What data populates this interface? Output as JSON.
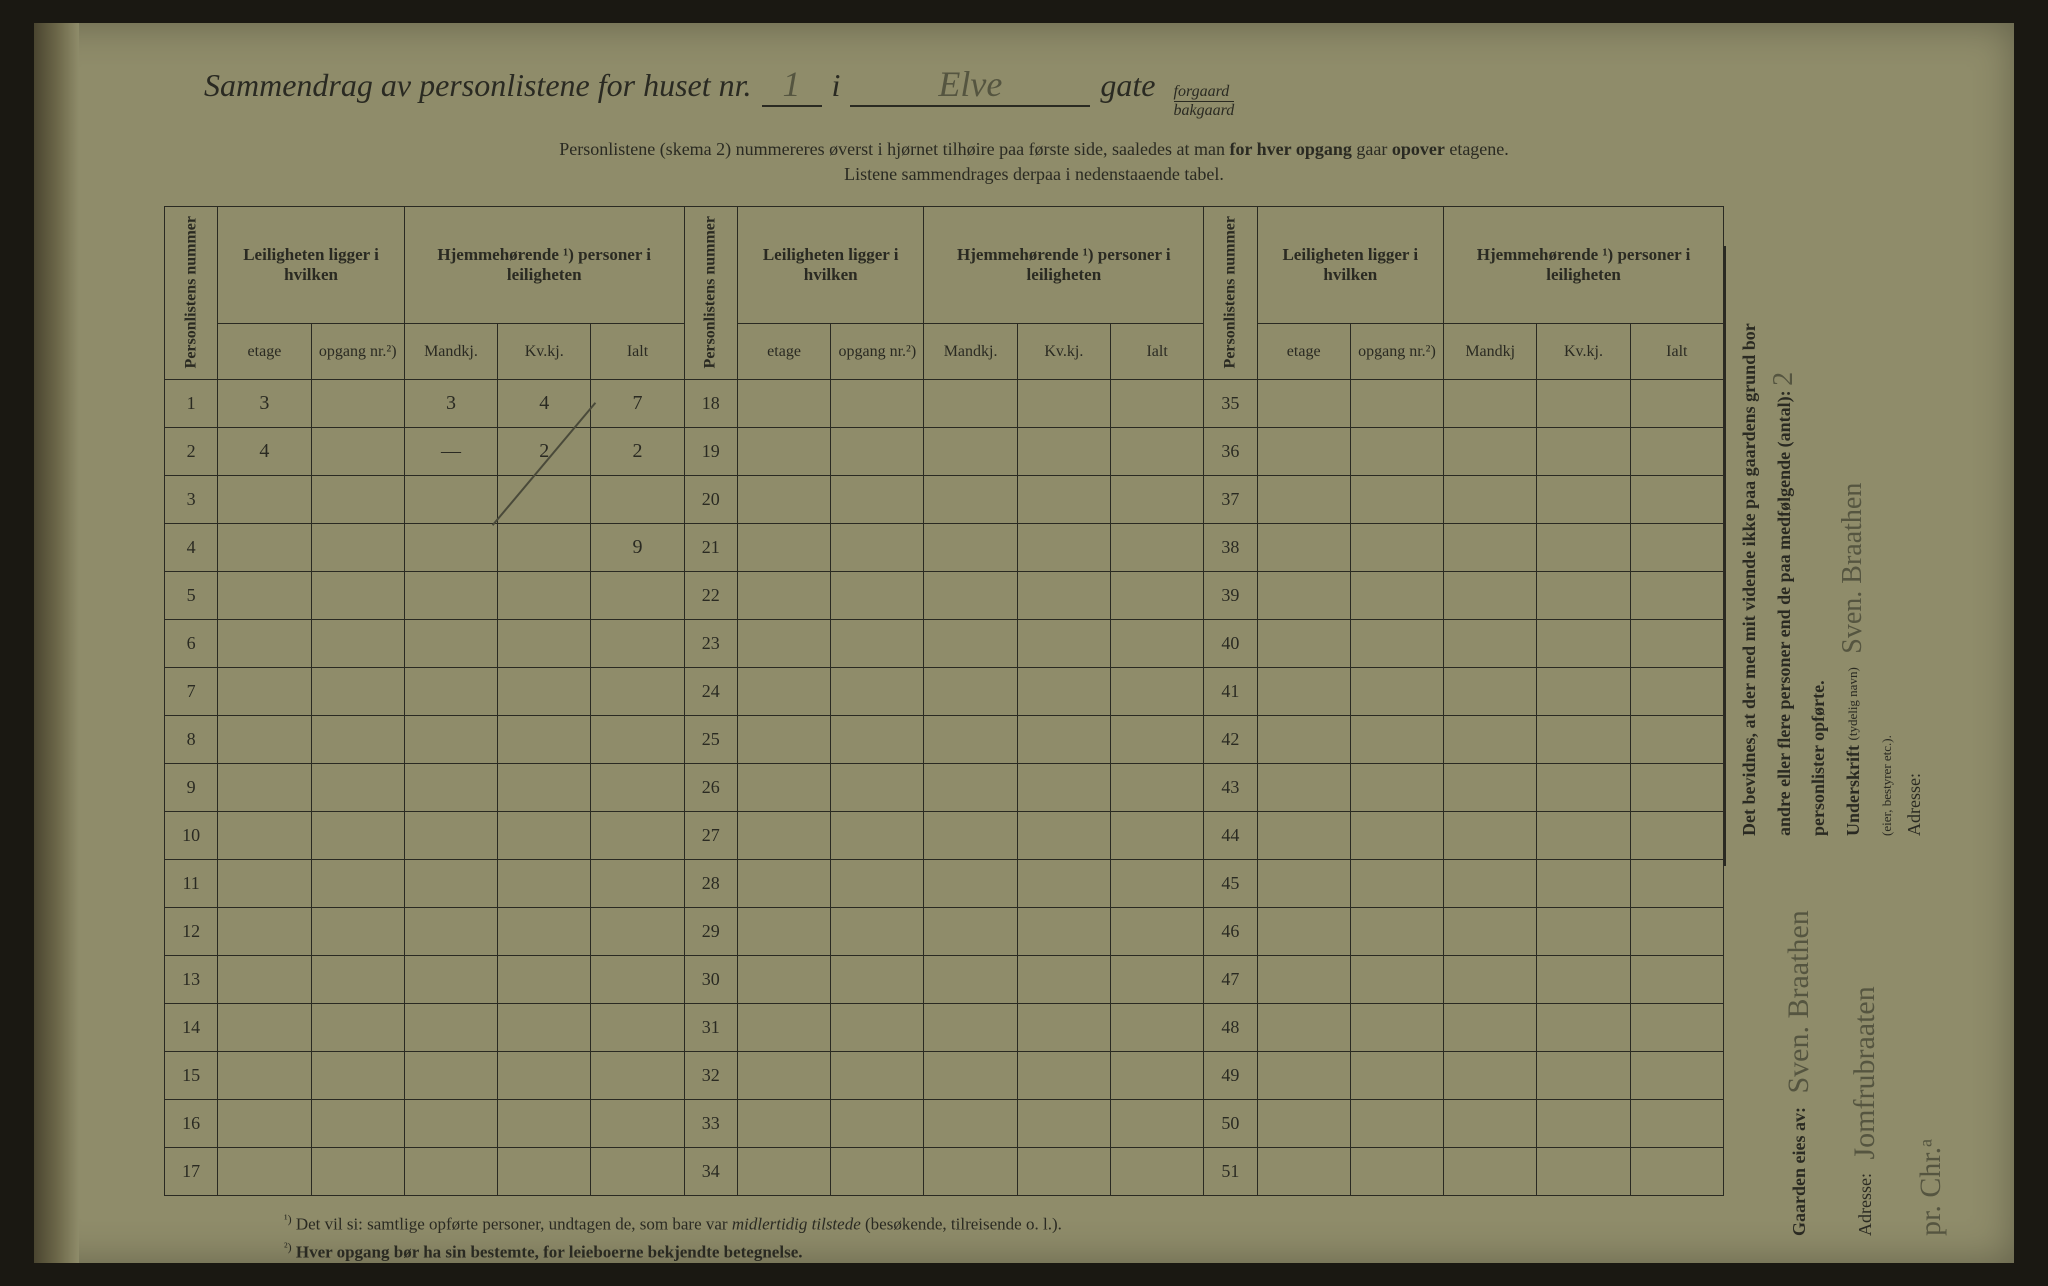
{
  "header": {
    "title_prefix": "Sammendrag av personlistene for huset nr.",
    "house_nr": "1",
    "i_label": "i",
    "street": "Elve",
    "gate_label": "gate",
    "gate_opt_top": "forgaard",
    "gate_opt_bottom": "bakgaard"
  },
  "subheader": {
    "line1_a": "Personlistene (skema 2) nummereres øverst i hjørnet tilhøire paa første side, saaledes at man ",
    "line1_b": "for hver opgang",
    "line1_c": " gaar ",
    "line1_d": "opover",
    "line1_e": " etagene.",
    "line2": "Listene sammendrages derpaa i nedenstaaende tabel."
  },
  "table": {
    "headers": {
      "personlistens_nummer": "Personlistens nummer",
      "leiligheten_group": "Leiligheten ligger i hvilken",
      "hjemmehorende_group": "Hjemmehørende ¹) personer i leiligheten",
      "etage": "etage",
      "opgang": "opgang nr.²)",
      "mandkj": "Mandkj.",
      "mandkj_short": "Mandkj",
      "kvkj": "Kv.kj.",
      "ialt": "Ialt"
    },
    "blocks": [
      {
        "start": 1,
        "end": 17
      },
      {
        "start": 18,
        "end": 34
      },
      {
        "start": 35,
        "end": 51
      }
    ],
    "data_rows": {
      "1": {
        "etage": "3",
        "opgang": "",
        "mandkj": "3",
        "kvkj": "4",
        "ialt": "7"
      },
      "2": {
        "etage": "4",
        "opgang": "",
        "mandkj": "—",
        "kvkj": "2",
        "ialt": "2"
      }
    },
    "sum_ialt": "9"
  },
  "footnotes": {
    "f1_sup": "¹)",
    "f1_text_a": "Det vil si: samtlige opførte personer, undtagen de, som bare var ",
    "f1_text_b": "midlertidig tilstede",
    "f1_text_c": " (besøkende, tilreisende o. l.).",
    "f2_sup": "²)",
    "f2_text": "Hver opgang bør ha sin bestemte, for leieboerne bekjendte betegnelse."
  },
  "attestation": {
    "line1_a": "Det bevidnes, at der med mit vidende ikke paa gaardens grund bor",
    "line1_b": "andre eller flere personer end de paa medfølgende (antal):",
    "count": "2",
    "line2": "personlister opførte.",
    "underskrift_label": "Underskrift",
    "underskrift_hint": "(tydelig navn)",
    "signature": "Sven. Braathen",
    "role_hint": "(eier, bestyrer etc.).",
    "adresse_label": "Adresse:"
  },
  "owner": {
    "label": "Gaarden eies av:",
    "name": "Sven. Braathen",
    "adresse_label": "Adresse:",
    "adresse_line1": "Jomfrubraaten",
    "adresse_line2": "pr. Chr.ᵃ"
  },
  "colors": {
    "paper": "#8f8c6a",
    "ink": "#2a2a22",
    "pencil": "#4a4a3a"
  }
}
